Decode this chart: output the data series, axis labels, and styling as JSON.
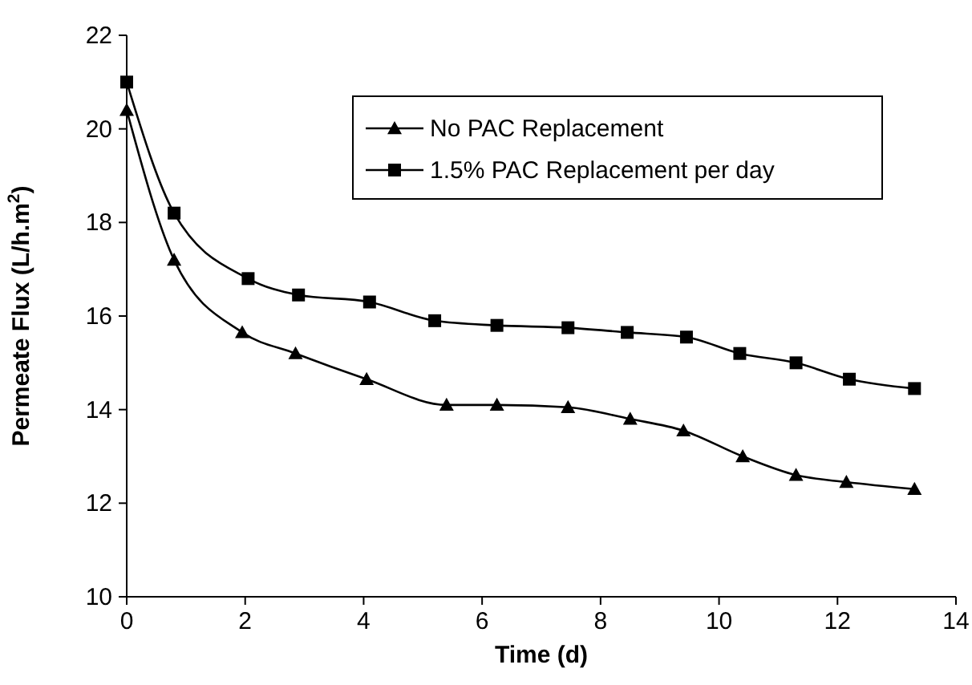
{
  "chart_data": {
    "type": "line",
    "xlabel": "Time (d)",
    "ylabel": "Permeate Flux (L/h.m$^{2}$)",
    "xlim": [
      0,
      14
    ],
    "xticks": [
      0,
      2,
      4,
      6,
      8,
      10,
      12,
      14
    ],
    "ylim": [
      10,
      22
    ],
    "yticks": [
      10,
      12,
      14,
      16,
      18,
      20,
      22
    ],
    "grid": false,
    "legend": "top right",
    "series": [
      {
        "name": "No PAC Replacement",
        "color": "#000000",
        "marker": "triangle",
        "x": [
          0,
          0.8,
          1.95,
          2.85,
          4.05,
          5.4,
          6.25,
          7.45,
          8.5,
          9.4,
          10.4,
          11.3,
          12.15,
          13.3
        ],
        "values": [
          20.4,
          17.2,
          15.65,
          15.2,
          14.65,
          14.1,
          14.1,
          14.05,
          13.8,
          13.55,
          13.0,
          12.6,
          12.45,
          12.3
        ]
      },
      {
        "name": "1.5% PAC Replacement per day",
        "color": "#000000",
        "marker": "square",
        "x": [
          0,
          0.8,
          2.05,
          2.9,
          4.1,
          5.2,
          6.25,
          7.45,
          8.45,
          9.45,
          10.35,
          11.3,
          12.2,
          13.3
        ],
        "values": [
          21.0,
          18.2,
          16.8,
          16.45,
          16.3,
          15.9,
          15.8,
          15.75,
          15.65,
          15.55,
          15.2,
          15.0,
          14.65,
          14.45
        ]
      }
    ]
  }
}
